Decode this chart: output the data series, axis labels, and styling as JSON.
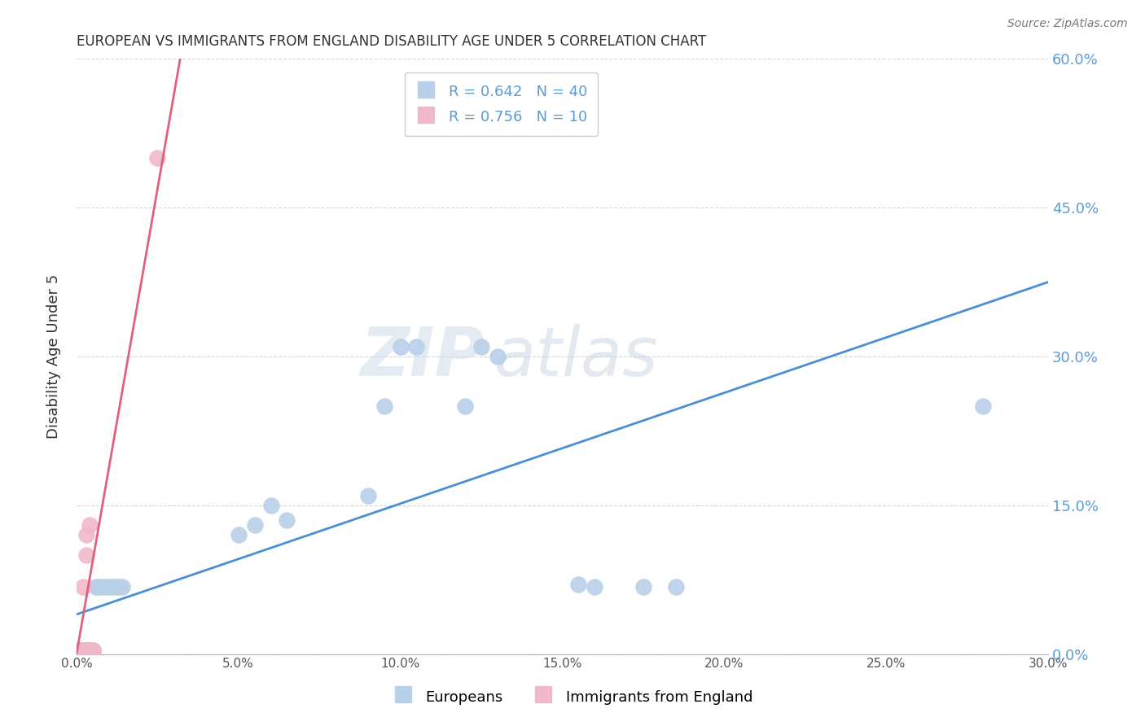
{
  "title": "EUROPEAN VS IMMIGRANTS FROM ENGLAND DISABILITY AGE UNDER 5 CORRELATION CHART",
  "source": "Source: ZipAtlas.com",
  "ylabel": "Disability Age Under 5",
  "xlim": [
    0.0,
    0.3
  ],
  "ylim": [
    0.0,
    0.6
  ],
  "xticks": [
    0.0,
    0.05,
    0.1,
    0.15,
    0.2,
    0.25,
    0.3
  ],
  "yticks": [
    0.0,
    0.15,
    0.3,
    0.45,
    0.6
  ],
  "background_color": "#ffffff",
  "grid_color": "#cccccc",
  "europeans_color": "#b8d0e8",
  "immigrants_color": "#f0b8c8",
  "europeans_line_color": "#4a8fd4",
  "immigrants_line_color": "#e06080",
  "right_axis_color": "#5b9bd5",
  "europeans_R": 0.642,
  "europeans_N": 40,
  "immigrants_R": 0.756,
  "immigrants_N": 10,
  "europeans_x": [
    0.001,
    0.001,
    0.001,
    0.001,
    0.002,
    0.002,
    0.002,
    0.003,
    0.003,
    0.003,
    0.004,
    0.004,
    0.005,
    0.005,
    0.006,
    0.006,
    0.007,
    0.008,
    0.009,
    0.01,
    0.011,
    0.012,
    0.013,
    0.014,
    0.05,
    0.055,
    0.06,
    0.065,
    0.09,
    0.095,
    0.1,
    0.105,
    0.12,
    0.125,
    0.13,
    0.155,
    0.16,
    0.175,
    0.185,
    0.28
  ],
  "europeans_y": [
    0.004,
    0.004,
    0.004,
    0.004,
    0.004,
    0.004,
    0.004,
    0.004,
    0.004,
    0.004,
    0.004,
    0.004,
    0.004,
    0.004,
    0.068,
    0.068,
    0.068,
    0.068,
    0.068,
    0.068,
    0.068,
    0.068,
    0.068,
    0.068,
    0.12,
    0.13,
    0.15,
    0.135,
    0.16,
    0.25,
    0.31,
    0.31,
    0.25,
    0.31,
    0.3,
    0.07,
    0.068,
    0.068,
    0.068,
    0.25
  ],
  "immigrants_x": [
    0.001,
    0.002,
    0.002,
    0.003,
    0.003,
    0.004,
    0.004,
    0.005,
    0.005,
    0.025
  ],
  "immigrants_y": [
    0.004,
    0.068,
    0.004,
    0.12,
    0.1,
    0.13,
    0.004,
    0.004,
    0.004,
    0.5
  ],
  "eu_trend_x0": 0.0,
  "eu_trend_y0": 0.04,
  "eu_trend_x1": 0.3,
  "eu_trend_y1": 0.375,
  "im_trend_x0": 0.0,
  "im_trend_y0": 0.0,
  "im_trend_x1": 0.032,
  "im_trend_y1": 0.6,
  "watermark_line1": "ZIP",
  "watermark_line2": "atlas",
  "legend_europeans": "Europeans",
  "legend_immigrants": "Immigrants from England"
}
